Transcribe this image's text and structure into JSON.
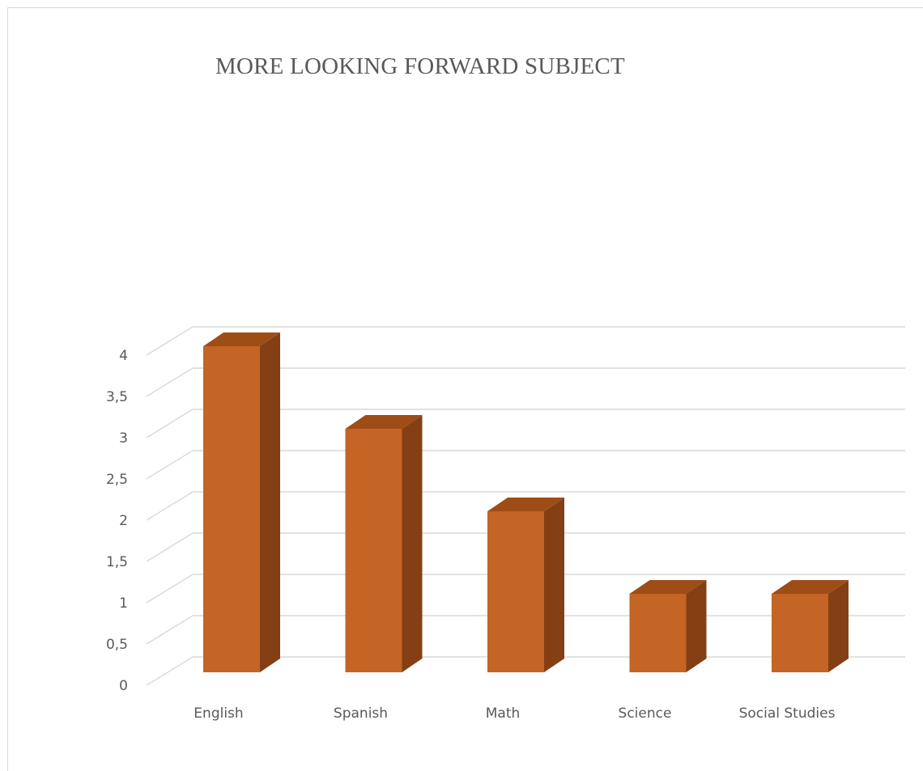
{
  "chart_data": {
    "type": "bar",
    "title": "MORE LOOKING FORWARD SUBJECT",
    "categories": [
      "English",
      "Spanish",
      "Math",
      "Science",
      "Social Studies"
    ],
    "values": [
      4,
      3,
      2,
      1,
      1
    ],
    "ylim": [
      0,
      4
    ],
    "yticks": [
      "0",
      "0,5",
      "1",
      "1,5",
      "2",
      "2,5",
      "3",
      "3,5",
      "4"
    ],
    "grid": true,
    "legend": "none",
    "style": "3d-column",
    "colors": {
      "front": "#c46525",
      "top": "#9e4d17",
      "side": "#843f15",
      "grid": "#d9d9d9",
      "text": "#595959"
    }
  }
}
